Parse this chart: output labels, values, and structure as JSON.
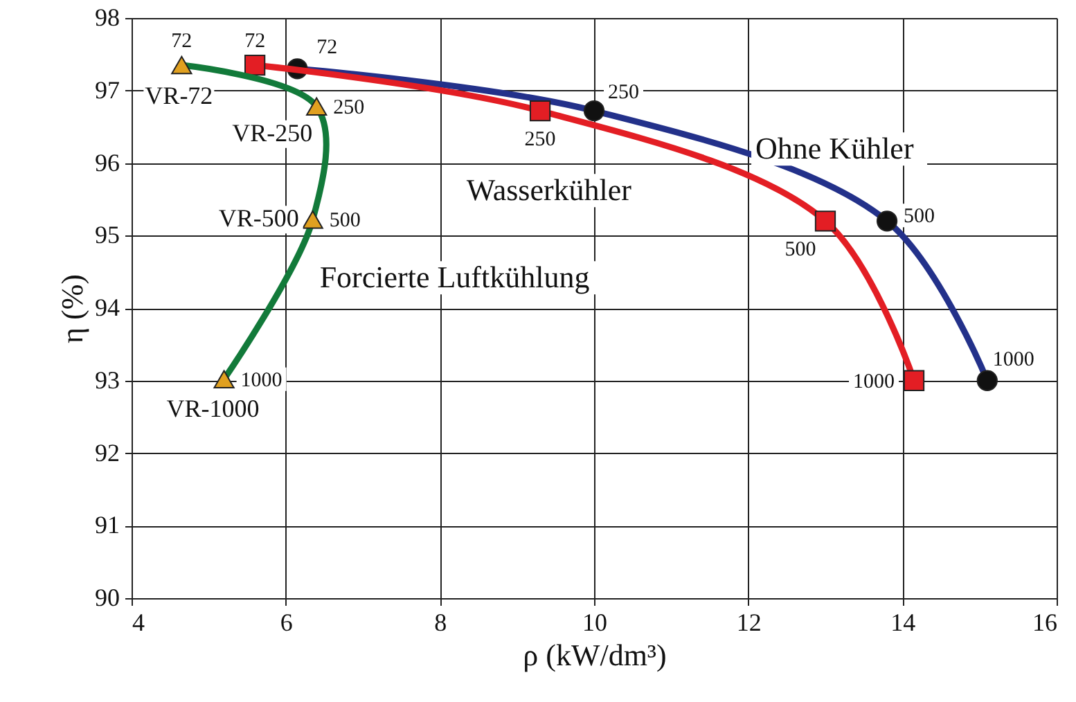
{
  "chart_data": {
    "type": "line",
    "xlabel": "ρ (kW/dm³)",
    "ylabel": "η (%)",
    "xlim": [
      4,
      16
    ],
    "xticks": [
      4,
      6,
      8,
      10,
      12,
      14,
      16
    ],
    "ylim": [
      90,
      98
    ],
    "yticks": [
      90,
      91,
      92,
      93,
      94,
      95,
      96,
      97,
      98
    ],
    "grid": true,
    "series": [
      {
        "name": "Ohne Kühler",
        "color": "#23318a",
        "marker": "circle",
        "x": [
          6.15,
          10.0,
          13.8,
          15.1
        ],
        "values": [
          97.3,
          96.72,
          95.2,
          93.0
        ]
      },
      {
        "name": "Wasserkühler",
        "color": "#e31e24",
        "marker": "square",
        "x": [
          5.6,
          9.3,
          13.0,
          14.15
        ],
        "values": [
          97.35,
          96.72,
          95.2,
          93.0
        ]
      },
      {
        "name": "Forcierte Luftkühlung",
        "color": "#127a3a",
        "marker": "triangle",
        "x": [
          4.65,
          6.4,
          6.35,
          5.2
        ],
        "values": [
          97.35,
          96.78,
          95.22,
          93.02
        ]
      }
    ],
    "annotations": [
      {
        "text": "72",
        "x": 6.15,
        "y": 97.3
      },
      {
        "text": "250",
        "x": 10.0,
        "y": 96.72
      },
      {
        "text": "500",
        "x": 13.8,
        "y": 95.2
      },
      {
        "text": "1000",
        "x": 15.1,
        "y": 93.0
      },
      {
        "text": "72",
        "x": 5.6,
        "y": 97.35
      },
      {
        "text": "250",
        "x": 9.3,
        "y": 96.72
      },
      {
        "text": "500",
        "x": 13.0,
        "y": 95.2
      },
      {
        "text": "1000",
        "x": 14.15,
        "y": 93.0
      },
      {
        "text": "72",
        "x": 4.65,
        "y": 97.35
      },
      {
        "text": "250",
        "x": 6.4,
        "y": 96.78
      },
      {
        "text": "500",
        "x": 6.35,
        "y": 95.22
      },
      {
        "text": "1000",
        "x": 5.2,
        "y": 93.02
      },
      {
        "text": "VR-72",
        "x": 4.65,
        "y": 97.35
      },
      {
        "text": "VR-250",
        "x": 6.4,
        "y": 96.78
      },
      {
        "text": "VR-500",
        "x": 6.35,
        "y": 95.22
      },
      {
        "text": "VR-1000",
        "x": 5.2,
        "y": 93.02
      }
    ]
  }
}
